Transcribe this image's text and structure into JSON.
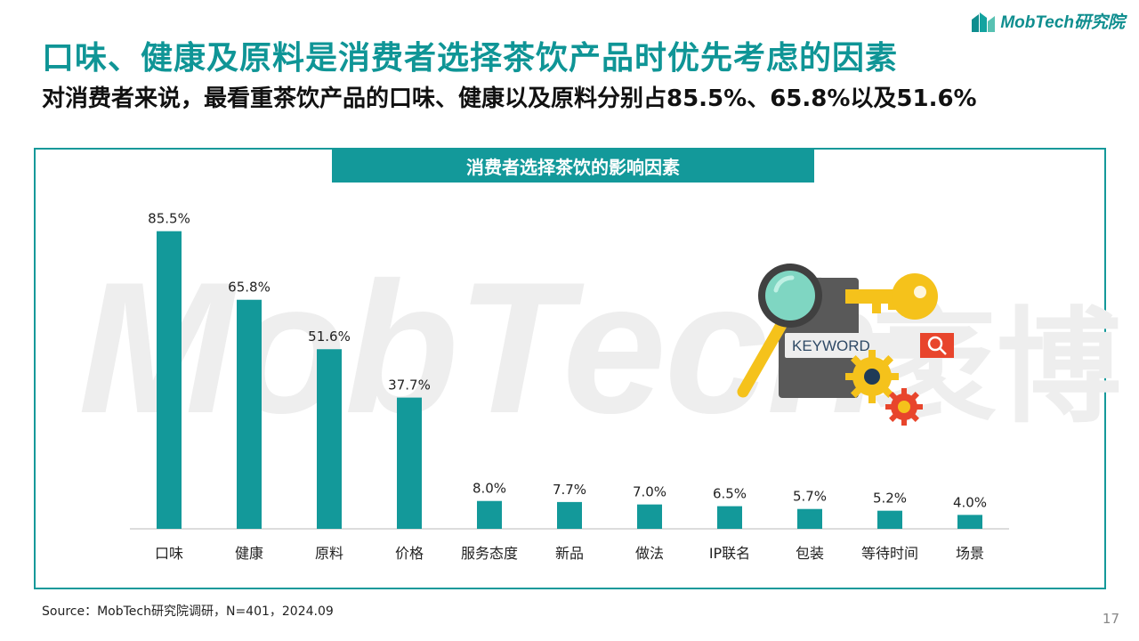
{
  "brand": {
    "logo_text": "MobTech研究院",
    "watermark": "MobTech",
    "watermark_cn": "袤博"
  },
  "header": {
    "title": "口味、健康及原料是消费者选择茶饮产品时优先考虑的因素",
    "subtitle": "对消费者来说，最看重茶饮产品的口味、健康以及原料分别占85.5%、65.8%以及51.6%"
  },
  "illustration": {
    "keyword_text": "KEYWORD",
    "icon": "keyword-search-key-gears-icon"
  },
  "colors": {
    "accent": "#13999a",
    "bar": "#13999a",
    "key": "#f5c21b",
    "gear_red": "#e8452c",
    "magnifier_glass": "#7fd6c2"
  },
  "chart_data": {
    "type": "bar",
    "title": "消费者选择茶饮的影响因素",
    "categories": [
      "口味",
      "健康",
      "原料",
      "价格",
      "服务态度",
      "新品",
      "做法",
      "IP联名",
      "包装",
      "等待时间",
      "场景"
    ],
    "values": [
      85.5,
      65.8,
      51.6,
      37.7,
      8.0,
      7.7,
      7.0,
      6.5,
      5.7,
      5.2,
      4.0
    ],
    "value_labels": [
      "85.5%",
      "65.8%",
      "51.6%",
      "37.7%",
      "8.0%",
      "7.7%",
      "7.0%",
      "6.5%",
      "5.7%",
      "5.2%",
      "4.0%"
    ],
    "unit": "%",
    "ylim": [
      0,
      100
    ],
    "grid": false,
    "xlabel": "",
    "ylabel": ""
  },
  "footer": {
    "source": "Source：MobTech研究院调研，N=401，2024.09",
    "page": "17"
  }
}
